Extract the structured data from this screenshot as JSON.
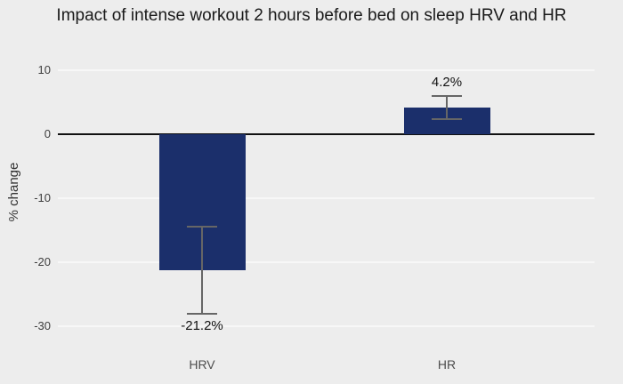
{
  "chart_data": {
    "type": "bar",
    "title": "Impact of intense workout 2 hours before bed on sleep HRV and HR",
    "xlabel": "",
    "ylabel": "% change",
    "categories": [
      "HRV",
      "HR"
    ],
    "values": [
      -21.2,
      4.2
    ],
    "value_labels": [
      "-21.2%",
      "4.2%"
    ],
    "error": [
      6.8,
      1.8
    ],
    "yticks": [
      10,
      0,
      -10,
      -20,
      -30
    ],
    "ylim": [
      -33,
      12
    ],
    "grid": true,
    "legend": false,
    "colors": {
      "bar": "#1b2f6b",
      "error_bar": "#666666",
      "background": "#ededed",
      "gridline": "#f7f7f7",
      "zero_line": "#111111",
      "title_text": "#1a1a1a",
      "tick_text": "#3d3d3d",
      "category_text": "#4d4d4d",
      "value_text": "#111111"
    }
  }
}
